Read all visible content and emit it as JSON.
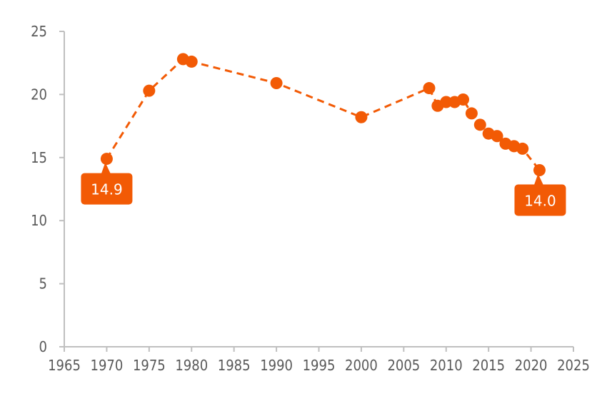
{
  "chart_data": {
    "type": "line",
    "title": "",
    "xlabel": "",
    "ylabel": "",
    "xlim": [
      1965,
      2025
    ],
    "ylim": [
      0,
      25
    ],
    "x_ticks": [
      1965,
      1970,
      1975,
      1980,
      1985,
      1990,
      1995,
      2000,
      2005,
      2010,
      2015,
      2020,
      2025
    ],
    "y_ticks": [
      0,
      5,
      10,
      15,
      20,
      25
    ],
    "grid": false,
    "line_style": "dashed",
    "marker": "circle",
    "color": "#F25A05",
    "series": [
      {
        "x": [
          1970,
          1975,
          1979,
          1980,
          1990,
          2000,
          2008,
          2009,
          2010,
          2011,
          2012,
          2013,
          2014,
          2015,
          2016,
          2017,
          2018,
          2019,
          2021
        ],
        "values": [
          14.9,
          20.3,
          22.8,
          22.6,
          20.9,
          18.2,
          20.5,
          19.1,
          19.4,
          19.4,
          19.6,
          18.5,
          17.6,
          16.9,
          16.7,
          16.1,
          15.9,
          15.7,
          14.0
        ]
      }
    ],
    "annotations": [
      {
        "x": 1970,
        "y": 14.9,
        "text": "14.9"
      },
      {
        "x": 2021,
        "y": 14.0,
        "text": "14.0"
      }
    ]
  }
}
